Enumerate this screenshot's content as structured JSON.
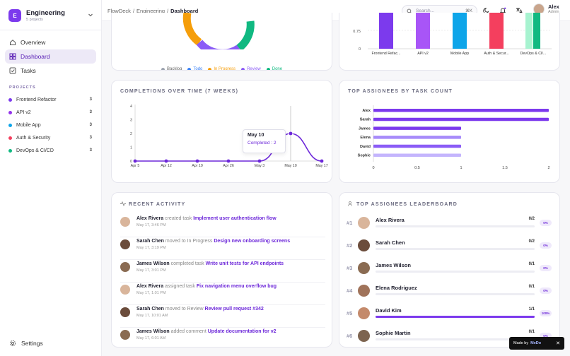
{
  "workspace": {
    "initial": "E",
    "name": "Engineering",
    "sub": "5 projects"
  },
  "nav": [
    {
      "label": "Overview",
      "icon": "home-icon"
    },
    {
      "label": "Dashboard",
      "icon": "dashboard-icon",
      "active": true
    },
    {
      "label": "Tasks",
      "icon": "checkbox-icon"
    }
  ],
  "projects_title": "PROJECTS",
  "projects": [
    {
      "name": "Frontend Refactor",
      "count": "3",
      "color": "#7c3aed"
    },
    {
      "name": "API v2",
      "count": "3",
      "color": "#9333ea"
    },
    {
      "name": "Mobile App",
      "count": "3",
      "color": "#0ea5e9"
    },
    {
      "name": "Auth & Security",
      "count": "3",
      "color": "#f43f5e"
    },
    {
      "name": "DevOps & CI/CD",
      "count": "3",
      "color": "#10b981"
    }
  ],
  "settings_label": "Settings",
  "breadcrumb": [
    "FlowDeck",
    "Engineering",
    "Dashboard"
  ],
  "search": {
    "placeholder": "Search...",
    "shortcut": "⌘K"
  },
  "user": {
    "name": "Alex",
    "role": "Admin"
  },
  "status_legend": [
    {
      "label": "Backlog",
      "color": "#9ca3af"
    },
    {
      "label": "Todo",
      "color": "#3b82f6"
    },
    {
      "label": "In Progress",
      "color": "#f59e0b"
    },
    {
      "label": "Review",
      "color": "#8b5cf6"
    },
    {
      "label": "Done",
      "color": "#10b981"
    }
  ],
  "project_bars": {
    "categories": [
      "Frontend Refac...",
      "API v2",
      "Mobile App",
      "Auth & Secur...",
      "DevOps & CI/..."
    ],
    "ticks": [
      "0.75",
      "0"
    ],
    "colors": [
      "#7c3aed",
      "#a855f7",
      "#0ea5e9",
      "#f43f5e",
      "#10b981"
    ],
    "light_colors": [
      null,
      null,
      null,
      null,
      "#a7f3d0"
    ]
  },
  "completions": {
    "title": "COMPLETIONS OVER TIME (7 WEEKS)",
    "chart_data": {
      "type": "line",
      "x": [
        "Apr 5",
        "Apr 12",
        "Apr 19",
        "Apr 26",
        "May 3",
        "May 10",
        "May 17"
      ],
      "values": [
        0,
        0,
        0,
        0,
        0,
        2,
        0
      ],
      "yticks": [
        "0",
        "1",
        "2",
        "3",
        "4"
      ],
      "ylim": [
        0,
        4
      ]
    },
    "tooltip": {
      "date": "May 10",
      "text": "Completed : 2"
    }
  },
  "assignees": {
    "title": "TOP ASSIGNEES BY TASK COUNT",
    "chart_data": {
      "type": "bar",
      "categories": [
        "Alex",
        "Sarah",
        "James",
        "Elena",
        "David",
        "Sophie"
      ],
      "values": [
        2,
        2,
        1,
        1,
        1,
        1
      ],
      "xticks": [
        "0",
        "0.5",
        "1",
        "1.5",
        "2"
      ],
      "xlim": [
        0,
        2
      ]
    }
  },
  "activity": {
    "title": "RECENT ACTIVITY",
    "items": [
      {
        "user": "Alex Rivera",
        "action": "created task",
        "target": "Implement user authentication flow",
        "time": "May 17, 3:46 PM",
        "ava": "#d9b59b"
      },
      {
        "user": "Sarah Chen",
        "action": "moved to In Progress",
        "target": "Design new onboarding screens",
        "time": "May 17, 3:19 PM",
        "ava": "#6b4c3b"
      },
      {
        "user": "James Wilson",
        "action": "completed task",
        "target": "Write unit tests for API endpoints",
        "time": "May 17, 3:01 PM",
        "ava": "#8a6b52"
      },
      {
        "user": "Alex Rivera",
        "action": "assigned task",
        "target": "Fix navigation menu overflow bug",
        "time": "May 17, 1:01 PM",
        "ava": "#d9b59b"
      },
      {
        "user": "Sarah Chen",
        "action": "moved to Review",
        "target": "Review pull request #342",
        "time": "May 17, 10:01 AM",
        "ava": "#6b4c3b"
      },
      {
        "user": "James Wilson",
        "action": "added comment",
        "target": "Update documentation for v2",
        "time": "May 17, 6:01 AM",
        "ava": "#8a6b52"
      }
    ]
  },
  "leaderboard": {
    "title": "TOP ASSIGNEES LEADERBOARD",
    "rows": [
      {
        "rank": "#1",
        "name": "Alex Rivera",
        "count": "0/2",
        "pct": "0%",
        "fill": 0,
        "ava": "#d9b59b"
      },
      {
        "rank": "#2",
        "name": "Sarah Chen",
        "count": "0/2",
        "pct": "0%",
        "fill": 0,
        "ava": "#6b4c3b"
      },
      {
        "rank": "#3",
        "name": "James Wilson",
        "count": "0/1",
        "pct": "0%",
        "fill": 0,
        "ava": "#8a6b52"
      },
      {
        "rank": "#4",
        "name": "Elena Rodriguez",
        "count": "0/1",
        "pct": "0%",
        "fill": 0,
        "ava": "#a0735a"
      },
      {
        "rank": "#5",
        "name": "David Kim",
        "count": "1/1",
        "pct": "100%",
        "fill": 1,
        "ava": "#c48a6b"
      },
      {
        "rank": "#6",
        "name": "Sophie Martin",
        "count": "0/1",
        "pct": "0%",
        "fill": 0,
        "ava": "#7d6450"
      }
    ]
  },
  "badge": {
    "made_by": "Made by",
    "brand": "MeDo",
    "close": "✕"
  }
}
